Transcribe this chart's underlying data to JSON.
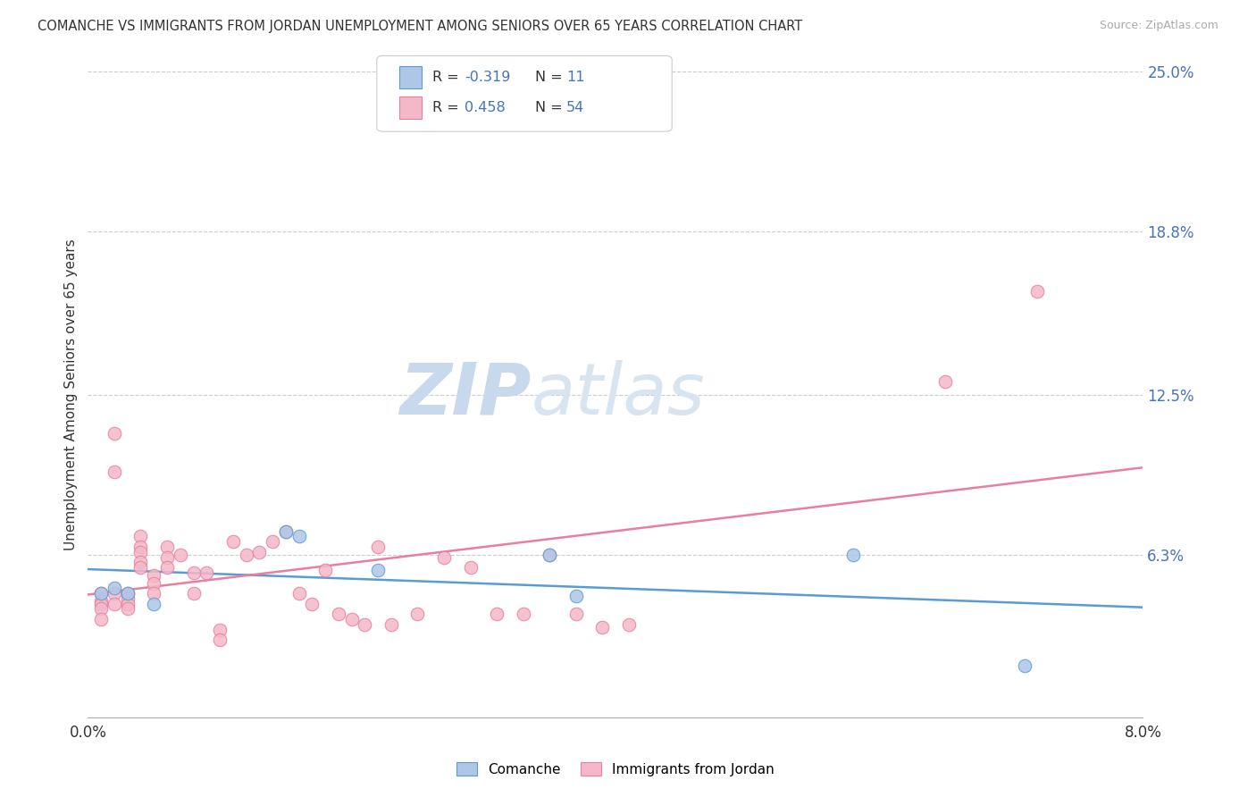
{
  "title": "COMANCHE VS IMMIGRANTS FROM JORDAN UNEMPLOYMENT AMONG SENIORS OVER 65 YEARS CORRELATION CHART",
  "source": "Source: ZipAtlas.com",
  "ylabel": "Unemployment Among Seniors over 65 years",
  "xlim": [
    0.0,
    0.08
  ],
  "ylim": [
    0.0,
    0.25
  ],
  "yticks_right": [
    0.063,
    0.125,
    0.188,
    0.25
  ],
  "ytick_labels_right": [
    "6.3%",
    "12.5%",
    "18.8%",
    "25.0%"
  ],
  "comanche_fill": "#aec6e8",
  "comanche_edge": "#5b9bd5",
  "jordan_fill": "#f4b8c8",
  "jordan_edge": "#e87fa0",
  "comanche_line_color": "#5b9bd5",
  "jordan_line_color": "#e87fa0",
  "watermark_color": "#d8e8f5",
  "comanche_R": -0.319,
  "comanche_N": 11,
  "jordan_R": 0.458,
  "jordan_N": 54,
  "legend_box_color": "#eeeeee",
  "comanche_x": [
    0.001,
    0.002,
    0.003,
    0.005,
    0.015,
    0.016,
    0.022,
    0.035,
    0.037,
    0.058,
    0.071
  ],
  "comanche_y": [
    0.048,
    0.05,
    0.048,
    0.044,
    0.072,
    0.07,
    0.057,
    0.063,
    0.047,
    0.063,
    0.02
  ],
  "jordan_x": [
    0.001,
    0.001,
    0.001,
    0.001,
    0.001,
    0.002,
    0.002,
    0.002,
    0.002,
    0.003,
    0.003,
    0.003,
    0.003,
    0.004,
    0.004,
    0.004,
    0.004,
    0.004,
    0.005,
    0.005,
    0.005,
    0.006,
    0.006,
    0.006,
    0.007,
    0.008,
    0.008,
    0.009,
    0.01,
    0.01,
    0.011,
    0.012,
    0.013,
    0.014,
    0.015,
    0.016,
    0.017,
    0.018,
    0.019,
    0.02,
    0.021,
    0.022,
    0.023,
    0.025,
    0.027,
    0.029,
    0.031,
    0.033,
    0.035,
    0.037,
    0.039,
    0.041,
    0.065,
    0.072
  ],
  "jordan_y": [
    0.048,
    0.045,
    0.044,
    0.042,
    0.038,
    0.11,
    0.095,
    0.048,
    0.044,
    0.048,
    0.046,
    0.044,
    0.042,
    0.07,
    0.066,
    0.064,
    0.06,
    0.058,
    0.055,
    0.052,
    0.048,
    0.066,
    0.062,
    0.058,
    0.063,
    0.056,
    0.048,
    0.056,
    0.034,
    0.03,
    0.068,
    0.063,
    0.064,
    0.068,
    0.072,
    0.048,
    0.044,
    0.057,
    0.04,
    0.038,
    0.036,
    0.066,
    0.036,
    0.04,
    0.062,
    0.058,
    0.04,
    0.04,
    0.063,
    0.04,
    0.035,
    0.036,
    0.13,
    0.165
  ]
}
